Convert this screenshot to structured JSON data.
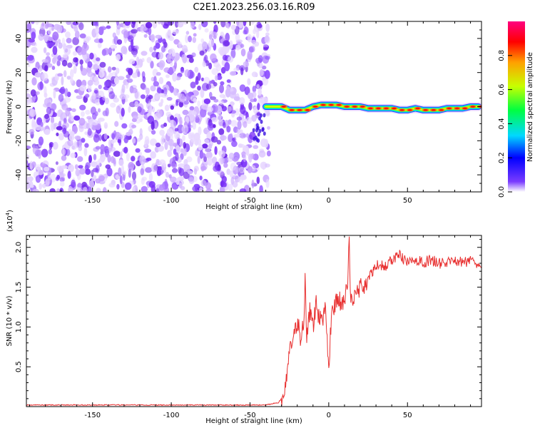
{
  "title": "C2E1.2023.256.03.16.R09",
  "chart_data": [
    {
      "type": "heatmap",
      "name": "spectrogram",
      "xlabel": "Height of straight line (km)",
      "ylabel": "Frequency (Hz)",
      "xlim": [
        -192,
        97
      ],
      "ylim": [
        -50,
        50
      ],
      "xticks": [
        -150,
        -100,
        -50,
        0,
        50
      ],
      "yticks": [
        -40,
        -20,
        0,
        20,
        40
      ],
      "noise_region_x": [
        -192,
        -38
      ],
      "signal_trace": {
        "x": [
          -40,
          -35,
          -30,
          -25,
          -20,
          -15,
          -10,
          -5,
          0,
          5,
          10,
          15,
          20,
          25,
          30,
          35,
          40,
          45,
          50,
          55,
          60,
          65,
          70,
          75,
          80,
          85,
          90,
          95
        ],
        "y": [
          0,
          0,
          0,
          -2,
          -2,
          -2,
          0,
          1,
          1,
          1,
          0,
          0,
          0,
          -1,
          -1,
          -1,
          -1,
          -2,
          -2,
          -1,
          -2,
          -2,
          -2,
          -1,
          -1,
          -1,
          0,
          0
        ]
      },
      "colorbar": {
        "label": "Normalized spectral amplitude",
        "range": [
          0,
          1
        ],
        "ticks": [
          "0.0",
          "0.2",
          "0.4",
          "0.6",
          "0.8"
        ]
      }
    },
    {
      "type": "line",
      "name": "snr",
      "xlabel": "Height of straight line (km)",
      "ylabel": "SNR (10 * v/v)",
      "scale_label": "(x10",
      "scale_exp": "4",
      "scale_close": ")",
      "xlim": [
        -192,
        97
      ],
      "ylim": [
        0,
        2.15
      ],
      "xticks": [
        -150,
        -100,
        -50,
        0,
        50
      ],
      "yticks": [
        "0.5",
        "1.0",
        "1.5",
        "2.0"
      ],
      "color": "#e83030",
      "series": [
        {
          "x": [
            -192,
            -100,
            -40,
            -32,
            -28,
            -26,
            -25,
            -24,
            -22,
            -20,
            -19,
            -18,
            -16,
            -15,
            -14,
            -12,
            -10,
            -8,
            -6,
            -5,
            -4,
            -2,
            0,
            2,
            4,
            6,
            8,
            10,
            12,
            13,
            14,
            16,
            20,
            24,
            28,
            32,
            36,
            40,
            45,
            50,
            55,
            60,
            65,
            70,
            75,
            80,
            85,
            90,
            95,
            97
          ],
          "y": [
            0.02,
            0.02,
            0.02,
            0.05,
            0.15,
            0.5,
            0.75,
            0.7,
            0.9,
            1.0,
            1.1,
            0.85,
            1.05,
            1.6,
            0.9,
            1.2,
            1.0,
            1.3,
            1.1,
            1.2,
            1.05,
            1.3,
            0.45,
            1.3,
            1.25,
            1.4,
            1.25,
            1.35,
            1.5,
            2.1,
            1.3,
            1.4,
            1.5,
            1.55,
            1.7,
            1.8,
            1.75,
            1.85,
            1.9,
            1.8,
            1.85,
            1.8,
            1.85,
            1.8,
            1.8,
            1.85,
            1.8,
            1.85,
            1.8,
            1.75
          ]
        }
      ]
    }
  ]
}
